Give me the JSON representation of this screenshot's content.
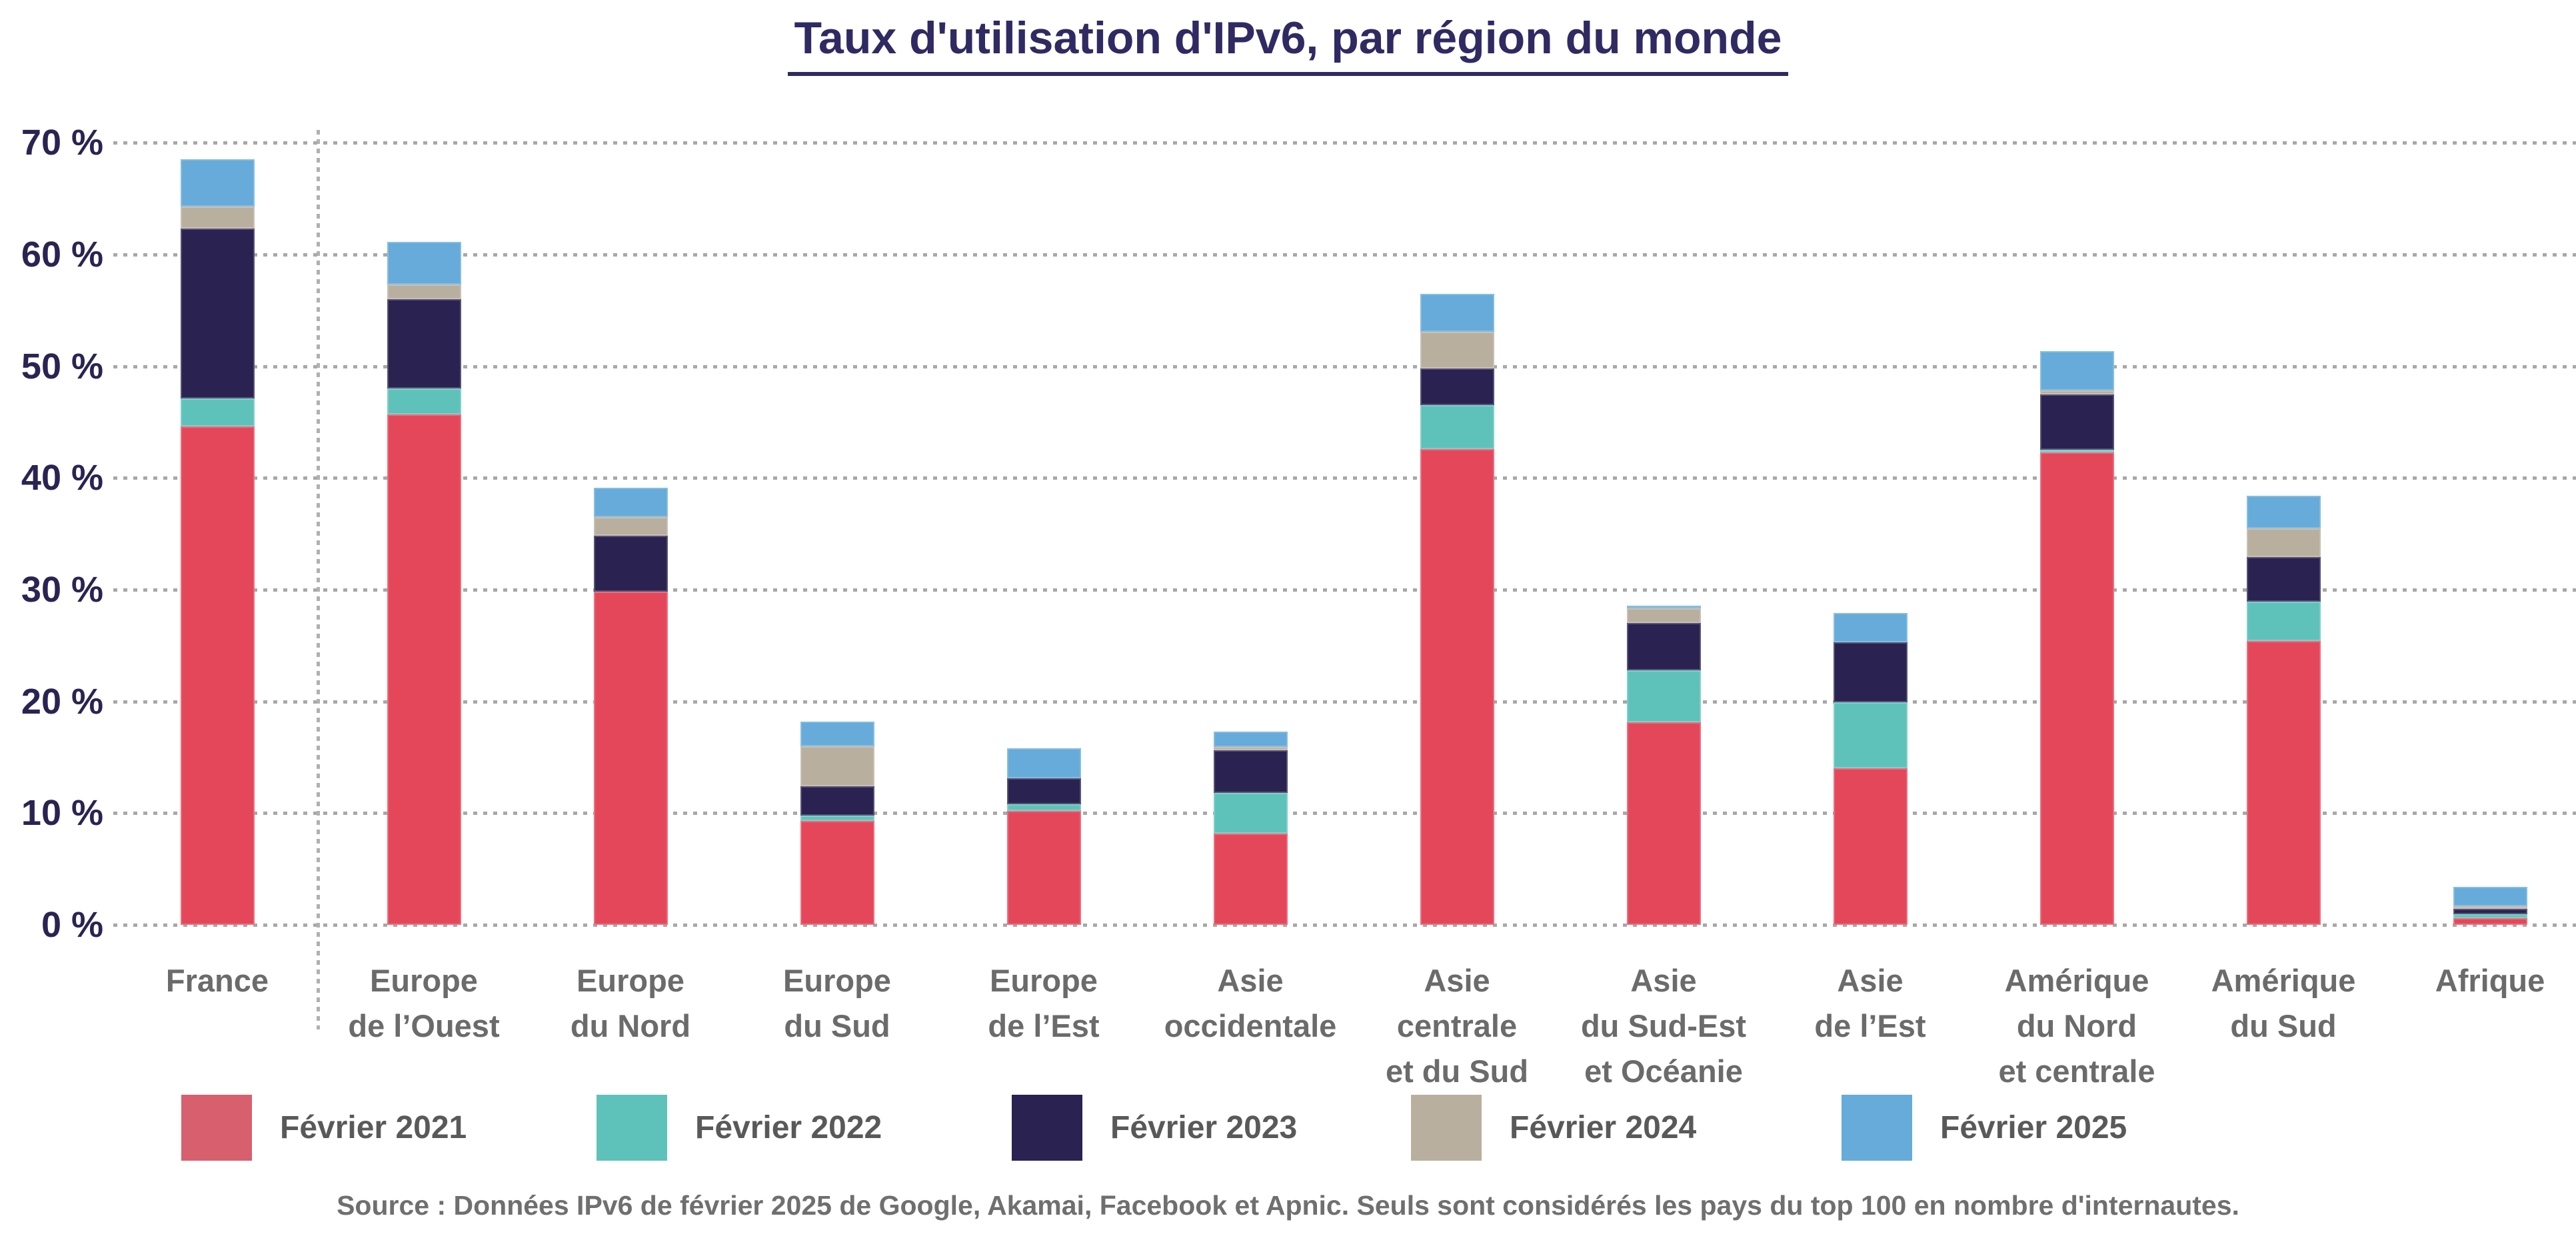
{
  "title": {
    "text": "Taux d'utilisation d'IPv6, par région du monde"
  },
  "source_note": "Source : Données IPv6 de février 2025 de Google, Akamai, Facebook et Apnic. Seuls sont considérés les pays du top 100 en nombre d'internautes.",
  "colors": {
    "title": "#302a63",
    "y_axis_labels": "#2a2452",
    "x_axis_labels": "#6b6b6b",
    "legend_labels": "#595959",
    "source_text": "#6f6f6f",
    "gridline": "#a8a8a8",
    "separator": "#b0b0b0"
  },
  "chart_data": {
    "type": "bar",
    "stacked": true,
    "title": "Taux d'utilisation d'IPv6, par région du monde",
    "xlabel": "",
    "ylabel": "",
    "ylim": [
      0,
      70
    ],
    "grid": "dotted horizontal",
    "legend_position": "bottom",
    "separator_after_category": "France",
    "categories": [
      "France",
      "Europe de l’Ouest",
      "Europe du Nord",
      "Europe du Sud",
      "Europe de l’Est",
      "Asie occidentale",
      "Asie centrale et du Sud",
      "Asie du Sud-Est et Océanie",
      "Asie de l’Est",
      "Amérique du Nord et centrale",
      "Amérique du Sud",
      "Afrique"
    ],
    "category_label_lines": [
      [
        "France"
      ],
      [
        "Europe",
        "de l’Ouest"
      ],
      [
        "Europe",
        "du Nord"
      ],
      [
        "Europe",
        "du Sud"
      ],
      [
        "Europe",
        "de l’Est"
      ],
      [
        "Asie",
        "occidentale"
      ],
      [
        "Asie",
        "centrale",
        "et du Sud"
      ],
      [
        "Asie",
        "du Sud-Est",
        "et Océanie"
      ],
      [
        "Asie",
        "de l’Est"
      ],
      [
        "Amérique",
        "du Nord",
        "et centrale"
      ],
      [
        "Amérique",
        "du Sud"
      ],
      [
        "Afrique"
      ]
    ],
    "series": [
      {
        "name": "Février 2021",
        "color": "#e5475a",
        "legend_color": "#d75f6e",
        "values": [
          44.6,
          45.7,
          29.8,
          9.3,
          10.2,
          8.2,
          42.6,
          18.1,
          14.0,
          42.3,
          25.4,
          0.6
        ]
      },
      {
        "name": "Février 2022",
        "color": "#5ec2ba",
        "legend_color": "#5ec2ba",
        "values": [
          2.5,
          2.3,
          0.0,
          0.5,
          0.6,
          3.6,
          3.9,
          4.7,
          5.9,
          0.1,
          3.5,
          0.35
        ]
      },
      {
        "name": "Février 2023",
        "color": "#2a2251",
        "legend_color": "#2a2251",
        "values": [
          15.2,
          8.0,
          5.0,
          2.6,
          2.3,
          3.8,
          3.3,
          4.2,
          5.4,
          4.9,
          4.0,
          0.5
        ]
      },
      {
        "name": "Février 2024",
        "color": "#b9af9f",
        "legend_color": "#b9af9f",
        "values": [
          2.0,
          1.3,
          1.7,
          3.6,
          0.0,
          0.3,
          3.3,
          1.3,
          0.0,
          0.4,
          2.6,
          0.25
        ]
      },
      {
        "name": "Février 2025",
        "color": "#66abd9",
        "legend_color": "#66abd9",
        "values": [
          4.2,
          3.8,
          2.6,
          2.2,
          2.7,
          1.4,
          3.4,
          0.2,
          2.6,
          3.5,
          2.9,
          1.7
        ]
      }
    ],
    "stacked_totals_feb_2025": [
      68.5,
      61.1,
      39.1,
      18.2,
      15.8,
      17.3,
      56.5,
      28.5,
      27.9,
      51.2,
      38.4,
      3.4
    ],
    "yaxis": {
      "min": 0,
      "max": 70,
      "step": 10,
      "tick_labels": [
        "0 %",
        "10 %",
        "20 %",
        "30 %",
        "40 %",
        "50 %",
        "60 %",
        "70 %"
      ]
    }
  }
}
